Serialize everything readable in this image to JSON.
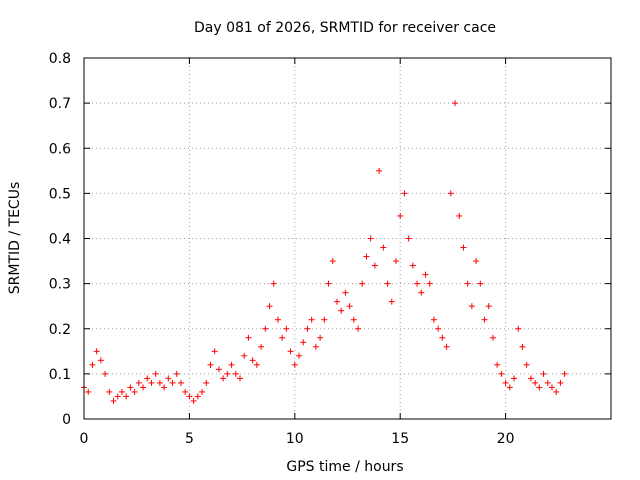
{
  "chart_data": {
    "type": "scatter",
    "title": "Day 081 of 2026, SRMTID for receiver cace",
    "xlabel": "GPS time / hours",
    "ylabel": "SRMTID / TECUs",
    "xlim": [
      0,
      25
    ],
    "ylim": [
      0,
      0.8
    ],
    "xticks": [
      0,
      5,
      10,
      15,
      20
    ],
    "xtick_labels": [
      "0",
      "5",
      "10",
      "15",
      "20"
    ],
    "yticks": [
      0,
      0.1,
      0.2,
      0.3,
      0.4,
      0.5,
      0.6,
      0.7,
      0.8
    ],
    "ytick_labels": [
      "0",
      "0.1",
      "0.2",
      "0.3",
      "0.4",
      "0.5",
      "0.6",
      "0.7",
      "0.8"
    ],
    "grid": true,
    "marker": "+",
    "marker_color": "#ff0000",
    "series": [
      {
        "name": "SRMTID",
        "x": [
          0.0,
          0.2,
          0.4,
          0.6,
          0.8,
          1.0,
          1.2,
          1.4,
          1.6,
          1.8,
          2.0,
          2.2,
          2.4,
          2.6,
          2.8,
          3.0,
          3.2,
          3.4,
          3.6,
          3.8,
          4.0,
          4.2,
          4.4,
          4.6,
          4.8,
          5.0,
          5.2,
          5.4,
          5.6,
          5.8,
          6.0,
          6.2,
          6.4,
          6.6,
          6.8,
          7.0,
          7.2,
          7.4,
          7.6,
          7.8,
          8.0,
          8.2,
          8.4,
          8.6,
          8.8,
          9.0,
          9.2,
          9.4,
          9.6,
          9.8,
          10.0,
          10.2,
          10.4,
          10.6,
          10.8,
          11.0,
          11.2,
          11.4,
          11.6,
          11.8,
          12.0,
          12.2,
          12.4,
          12.6,
          12.8,
          13.0,
          13.2,
          13.4,
          13.6,
          13.8,
          14.0,
          14.2,
          14.4,
          14.6,
          14.8,
          15.0,
          15.2,
          15.4,
          15.6,
          15.8,
          16.0,
          16.2,
          16.4,
          16.6,
          16.8,
          17.0,
          17.2,
          17.4,
          17.6,
          17.8,
          18.0,
          18.2,
          18.4,
          18.6,
          18.8,
          19.0,
          19.2,
          19.4,
          19.6,
          19.8,
          20.0,
          20.2,
          20.4,
          20.6,
          20.8,
          21.0,
          21.2,
          21.4,
          21.6,
          21.8,
          22.0,
          22.2,
          22.4,
          22.6,
          22.8
        ],
        "y": [
          0.07,
          0.06,
          0.12,
          0.15,
          0.13,
          0.1,
          0.06,
          0.04,
          0.05,
          0.06,
          0.05,
          0.07,
          0.06,
          0.08,
          0.07,
          0.09,
          0.08,
          0.1,
          0.08,
          0.07,
          0.09,
          0.08,
          0.1,
          0.08,
          0.06,
          0.05,
          0.04,
          0.05,
          0.06,
          0.08,
          0.12,
          0.15,
          0.11,
          0.09,
          0.1,
          0.12,
          0.1,
          0.09,
          0.14,
          0.18,
          0.13,
          0.12,
          0.16,
          0.2,
          0.25,
          0.3,
          0.22,
          0.18,
          0.2,
          0.15,
          0.12,
          0.14,
          0.17,
          0.2,
          0.22,
          0.16,
          0.18,
          0.22,
          0.3,
          0.35,
          0.26,
          0.24,
          0.28,
          0.25,
          0.22,
          0.2,
          0.3,
          0.36,
          0.4,
          0.34,
          0.55,
          0.38,
          0.3,
          0.26,
          0.35,
          0.45,
          0.5,
          0.4,
          0.34,
          0.3,
          0.28,
          0.32,
          0.3,
          0.22,
          0.2,
          0.18,
          0.16,
          0.5,
          0.7,
          0.45,
          0.38,
          0.3,
          0.25,
          0.35,
          0.3,
          0.22,
          0.25,
          0.18,
          0.12,
          0.1,
          0.08,
          0.07,
          0.09,
          0.2,
          0.16,
          0.12,
          0.09,
          0.08,
          0.07,
          0.1,
          0.08,
          0.07,
          0.06,
          0.08,
          0.1
        ]
      }
    ]
  }
}
